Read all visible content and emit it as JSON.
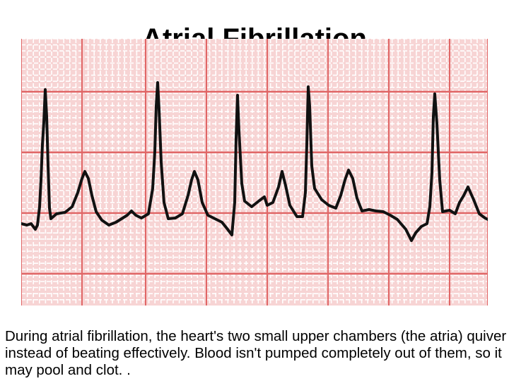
{
  "slide": {
    "title": "Atrial Fibrillation",
    "caption": "During atrial fibrillation, the heart's two small upper chambers (the atria) quiver instead of beating effectively. Blood isn't pumped completely out of them, so it may pool and clot. ."
  },
  "ecg": {
    "paper_color": "#f7d4d4",
    "minor_grid_color": "#ffffff",
    "major_grid_color": "#e06666",
    "trace_color": "#111111"
  }
}
